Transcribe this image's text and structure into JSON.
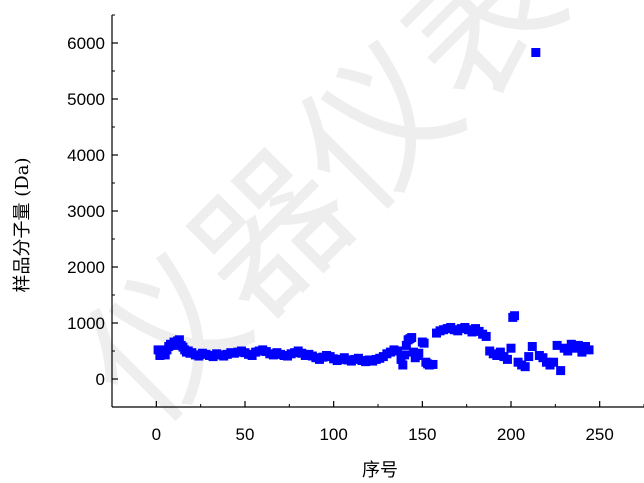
{
  "chart_data": {
    "type": "scatter",
    "xlabel": "序号",
    "ylabel": "样品分子量 (Da)",
    "xlim": [
      -25,
      275
    ],
    "ylim": [
      -500,
      6500
    ],
    "x_ticks": [
      0,
      50,
      100,
      150,
      200,
      250
    ],
    "y_ticks": [
      0,
      1000,
      2000,
      3000,
      4000,
      5000,
      6000
    ],
    "x_tick_labels": [
      "0",
      "50",
      "100",
      "150",
      "200",
      "250"
    ],
    "y_tick_labels": [
      "0",
      "1000",
      "2000",
      "3000",
      "4000",
      "5000",
      "6000"
    ],
    "grid": false,
    "watermark": "仪器仪表学",
    "series": [
      {
        "color": "#0000ff",
        "marker": "square",
        "points": [
          [
            1,
            520
          ],
          [
            2,
            420
          ],
          [
            3,
            450
          ],
          [
            4,
            480
          ],
          [
            5,
            430
          ],
          [
            6,
            520
          ],
          [
            7,
            580
          ],
          [
            8,
            620
          ],
          [
            9,
            600
          ],
          [
            10,
            660
          ],
          [
            11,
            640
          ],
          [
            12,
            680
          ],
          [
            13,
            700
          ],
          [
            14,
            600
          ],
          [
            15,
            570
          ],
          [
            16,
            520
          ],
          [
            17,
            480
          ],
          [
            18,
            500
          ],
          [
            19,
            460
          ],
          [
            20,
            470
          ],
          [
            22,
            430
          ],
          [
            24,
            410
          ],
          [
            26,
            460
          ],
          [
            28,
            440
          ],
          [
            30,
            420
          ],
          [
            32,
            400
          ],
          [
            34,
            450
          ],
          [
            36,
            430
          ],
          [
            38,
            410
          ],
          [
            40,
            440
          ],
          [
            42,
            470
          ],
          [
            44,
            460
          ],
          [
            46,
            480
          ],
          [
            48,
            500
          ],
          [
            50,
            470
          ],
          [
            52,
            440
          ],
          [
            54,
            420
          ],
          [
            56,
            480
          ],
          [
            58,
            500
          ],
          [
            60,
            520
          ],
          [
            62,
            490
          ],
          [
            64,
            450
          ],
          [
            66,
            430
          ],
          [
            68,
            470
          ],
          [
            70,
            440
          ],
          [
            72,
            420
          ],
          [
            74,
            410
          ],
          [
            76,
            450
          ],
          [
            78,
            470
          ],
          [
            80,
            500
          ],
          [
            82,
            460
          ],
          [
            84,
            420
          ],
          [
            86,
            440
          ],
          [
            88,
            410
          ],
          [
            90,
            380
          ],
          [
            92,
            350
          ],
          [
            94,
            390
          ],
          [
            96,
            420
          ],
          [
            98,
            400
          ],
          [
            100,
            360
          ],
          [
            102,
            330
          ],
          [
            104,
            350
          ],
          [
            106,
            380
          ],
          [
            108,
            340
          ],
          [
            110,
            320
          ],
          [
            112,
            350
          ],
          [
            114,
            370
          ],
          [
            116,
            330
          ],
          [
            118,
            310
          ],
          [
            120,
            340
          ],
          [
            122,
            320
          ],
          [
            124,
            350
          ],
          [
            126,
            370
          ],
          [
            128,
            400
          ],
          [
            130,
            450
          ],
          [
            132,
            480
          ],
          [
            134,
            520
          ],
          [
            136,
            500
          ],
          [
            138,
            350
          ],
          [
            139,
            250
          ],
          [
            140,
            430
          ],
          [
            141,
            600
          ],
          [
            142,
            700
          ],
          [
            143,
            720
          ],
          [
            144,
            740
          ],
          [
            145,
            480
          ],
          [
            146,
            380
          ],
          [
            147,
            420
          ],
          [
            148,
            460
          ],
          [
            150,
            660
          ],
          [
            151,
            640
          ],
          [
            152,
            300
          ],
          [
            153,
            270
          ],
          [
            154,
            250
          ],
          [
            156,
            260
          ],
          [
            158,
            820
          ],
          [
            160,
            860
          ],
          [
            162,
            880
          ],
          [
            164,
            900
          ],
          [
            166,
            920
          ],
          [
            168,
            880
          ],
          [
            170,
            860
          ],
          [
            172,
            900
          ],
          [
            174,
            920
          ],
          [
            176,
            880
          ],
          [
            178,
            840
          ],
          [
            180,
            900
          ],
          [
            182,
            850
          ],
          [
            184,
            800
          ],
          [
            186,
            760
          ],
          [
            188,
            500
          ],
          [
            190,
            450
          ],
          [
            192,
            420
          ],
          [
            194,
            480
          ],
          [
            196,
            400
          ],
          [
            198,
            350
          ],
          [
            200,
            550
          ],
          [
            201,
            1100
          ],
          [
            202,
            1130
          ],
          [
            204,
            300
          ],
          [
            206,
            250
          ],
          [
            208,
            220
          ],
          [
            210,
            400
          ],
          [
            212,
            580
          ],
          [
            214,
            5830
          ],
          [
            216,
            420
          ],
          [
            218,
            380
          ],
          [
            220,
            300
          ],
          [
            222,
            250
          ],
          [
            224,
            300
          ],
          [
            226,
            600
          ],
          [
            228,
            150
          ],
          [
            230,
            550
          ],
          [
            232,
            500
          ],
          [
            234,
            620
          ],
          [
            236,
            550
          ],
          [
            238,
            600
          ],
          [
            240,
            480
          ],
          [
            242,
            580
          ],
          [
            244,
            520
          ]
        ]
      }
    ]
  }
}
